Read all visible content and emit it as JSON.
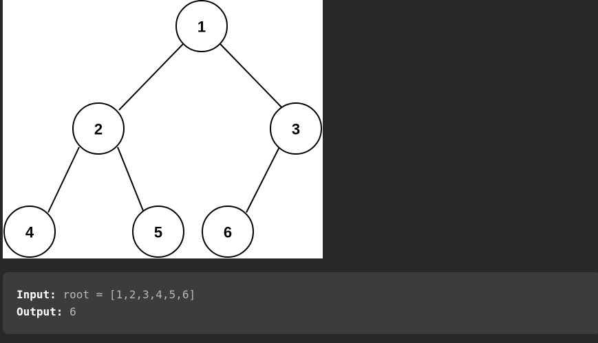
{
  "tree": {
    "nodes": [
      {
        "id": "n1",
        "label": "1"
      },
      {
        "id": "n2",
        "label": "2"
      },
      {
        "id": "n3",
        "label": "3"
      },
      {
        "id": "n4",
        "label": "4"
      },
      {
        "id": "n5",
        "label": "5"
      },
      {
        "id": "n6",
        "label": "6"
      }
    ],
    "edges": [
      [
        "1",
        "2"
      ],
      [
        "1",
        "3"
      ],
      [
        "2",
        "4"
      ],
      [
        "2",
        "5"
      ],
      [
        "3",
        "6"
      ]
    ]
  },
  "example": {
    "input_label": "Input:",
    "input_value": "root = [1,2,3,4,5,6]",
    "output_label": "Output:",
    "output_value": "6"
  },
  "colors": {
    "page_background": "#282828",
    "figure_background": "#ffffff",
    "code_block_background": "#3c3c3c",
    "code_key": "#ffffff",
    "code_value": "#b8b8b8"
  }
}
